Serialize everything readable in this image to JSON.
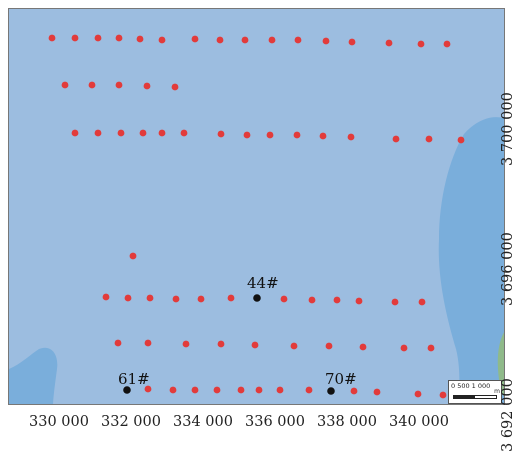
{
  "x_axis_ticks": [
    "330 000",
    "332 000",
    "334 000",
    "336 000",
    "338 000",
    "340 000"
  ],
  "y_axis_ticks": [
    "3 700 000",
    "3 696 000",
    "3 692 000"
  ],
  "station_labels": [
    "44#",
    "61#",
    "70#"
  ],
  "scale_bar": {
    "text": "0 500 1 000",
    "unit": "m"
  },
  "colors": {
    "water": "#9cbde0",
    "deep_water": "#7aaedb",
    "land": "#8fba8a",
    "sample_point": "#e23b3b",
    "labeled_point": "#111111"
  },
  "legend": {
    "sample_point_symbol": "red-dot",
    "labeled_station_symbol": "black-dot"
  }
}
